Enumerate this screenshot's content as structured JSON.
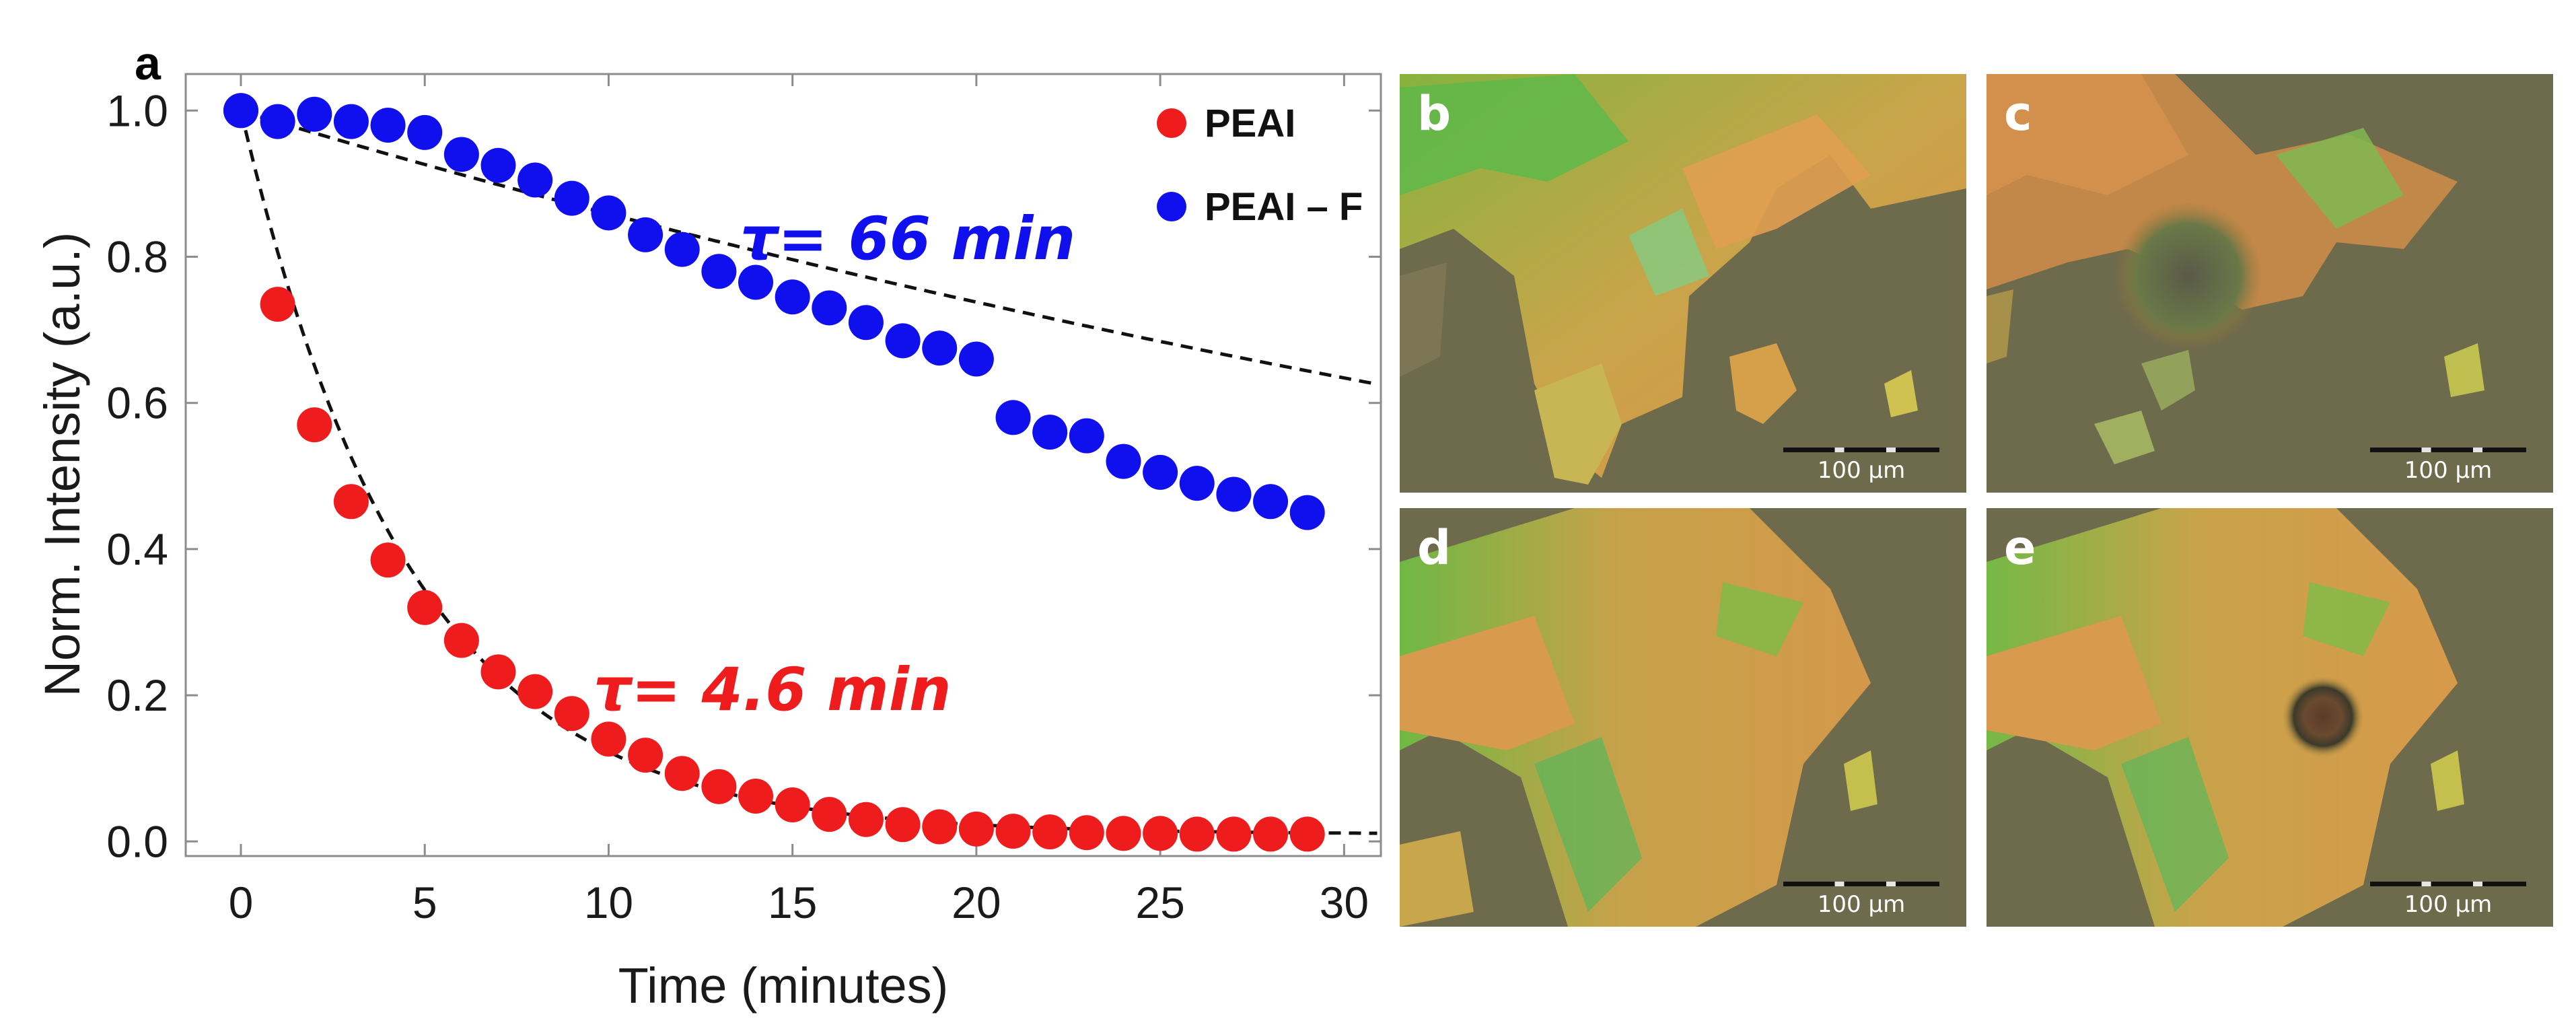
{
  "panel_a_label": "a",
  "chart_data": {
    "type": "scatter",
    "xlabel": "Time (minutes)",
    "ylabel": "Norm. Intensity (a.u.)",
    "xlim": [
      -1.5,
      31
    ],
    "ylim": [
      -0.02,
      1.05
    ],
    "xticks": [
      0,
      5,
      10,
      15,
      20,
      25,
      30
    ],
    "yticks": [
      0.0,
      0.2,
      0.4,
      0.6,
      0.8,
      1.0
    ],
    "xtick_labels": [
      "0",
      "5",
      "10",
      "15",
      "20",
      "25",
      "30"
    ],
    "ytick_labels": [
      "0.0",
      "0.2",
      "0.4",
      "0.6",
      "0.8",
      "1.0"
    ],
    "legend_position": "top-right",
    "series": [
      {
        "name": "PEAI",
        "color": "#ee1c1c",
        "x": [
          0,
          1,
          2,
          3,
          4,
          5,
          6,
          7,
          8,
          9,
          10,
          11,
          12,
          13,
          14,
          15,
          16,
          17,
          18,
          19,
          20,
          21,
          22,
          23,
          24,
          25,
          26,
          27,
          28,
          29
        ],
        "y": [
          1.0,
          0.735,
          0.57,
          0.465,
          0.385,
          0.32,
          0.275,
          0.232,
          0.205,
          0.175,
          0.14,
          0.118,
          0.093,
          0.075,
          0.062,
          0.05,
          0.037,
          0.03,
          0.023,
          0.02,
          0.017,
          0.014,
          0.013,
          0.012,
          0.011,
          0.011,
          0.01,
          0.01,
          0.01,
          0.01
        ],
        "fit": {
          "model": "exponential",
          "tau_min": 4.6
        },
        "annotation": "τ= 4.6 min"
      },
      {
        "name": "PEAI – F",
        "color": "#1010ee",
        "x": [
          0,
          1,
          2,
          3,
          4,
          5,
          6,
          7,
          8,
          9,
          10,
          11,
          12,
          13,
          14,
          15,
          16,
          17,
          18,
          19,
          20,
          21,
          22,
          23,
          24,
          25,
          26,
          27,
          28,
          29
        ],
        "y": [
          1.0,
          0.985,
          0.995,
          0.985,
          0.98,
          0.97,
          0.94,
          0.925,
          0.905,
          0.88,
          0.86,
          0.83,
          0.81,
          0.78,
          0.765,
          0.745,
          0.73,
          0.71,
          0.685,
          0.675,
          0.66,
          0.58,
          0.56,
          0.555,
          0.52,
          0.505,
          0.49,
          0.475,
          0.465,
          0.45
        ],
        "fit": {
          "model": "exponential",
          "tau_min": 66
        },
        "annotation": "τ= 66 min"
      }
    ]
  },
  "micrographs": [
    {
      "label": "b",
      "scale_text": "100 µm",
      "variant": "before"
    },
    {
      "label": "c",
      "scale_text": "100 µm",
      "variant": "after-degraded"
    },
    {
      "label": "d",
      "scale_text": "100 µm",
      "variant": "before"
    },
    {
      "label": "e",
      "scale_text": "100 µm",
      "variant": "after-spot"
    }
  ]
}
